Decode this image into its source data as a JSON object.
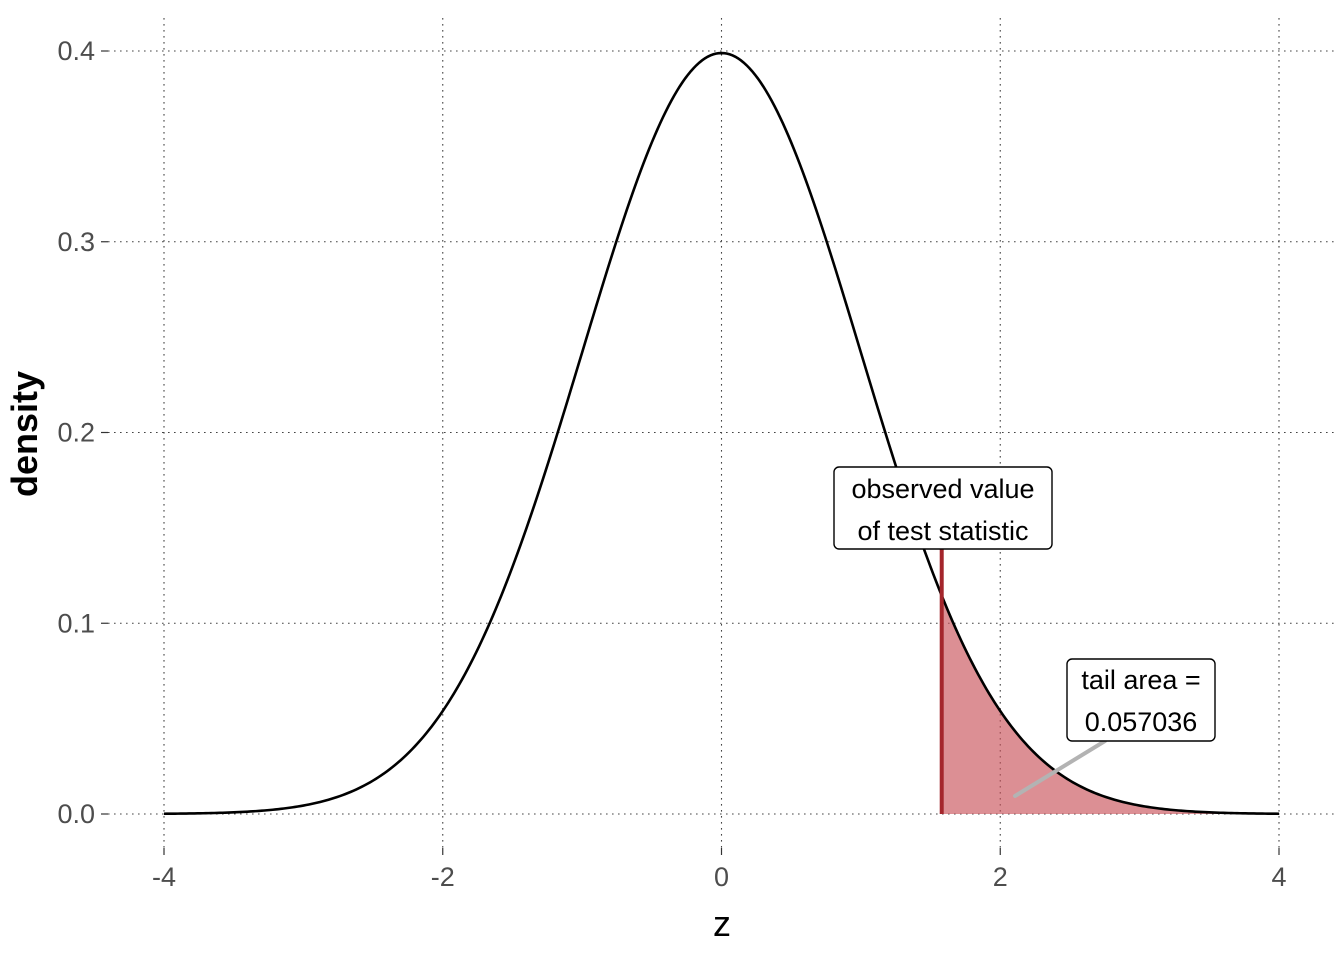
{
  "chart_data": {
    "type": "area",
    "title": "",
    "xlabel": "z",
    "ylabel": "density",
    "xlim": [
      -4,
      4
    ],
    "ylim": [
      0,
      0.4
    ],
    "x_ticks": [
      -4,
      -2,
      0,
      2,
      4
    ],
    "x_tick_labels": [
      "-4",
      "-2",
      "0",
      "2",
      "4"
    ],
    "y_ticks": [
      0,
      0.1,
      0.2,
      0.3,
      0.4
    ],
    "y_tick_labels": [
      "0.0",
      "0.1",
      "0.2",
      "0.3",
      "0.4"
    ],
    "grid": true,
    "series": [
      {
        "name": "standard normal density",
        "distribution": "normal",
        "mean": 0,
        "sd": 1,
        "x_range": [
          -4,
          4
        ]
      }
    ],
    "observed_statistic": 1.58,
    "shaded_region": {
      "from": 1.58,
      "to": 4
    },
    "annotations": {
      "observed": {
        "lines": [
          "observed value",
          "of test statistic"
        ]
      },
      "tail": {
        "lines": [
          "tail area =",
          "0.057036"
        ]
      }
    },
    "colors": {
      "curve": "#000000",
      "fill": "#c9535a",
      "fill_opacity": 0.65,
      "observed_line": "#a4262c",
      "leader": "#b3b3b3"
    }
  }
}
